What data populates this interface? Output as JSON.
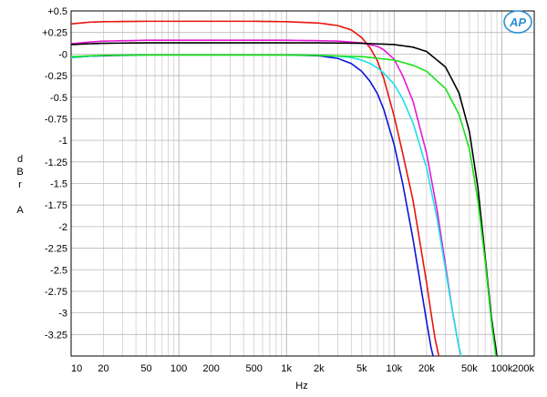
{
  "chart_data": {
    "type": "line",
    "title": "",
    "xlabel": "Hz",
    "ylabel_letters": [
      "d",
      "B",
      "r",
      "",
      "A"
    ],
    "x_scale": "log",
    "xlim": [
      10,
      200000
    ],
    "ylim": [
      -3.5,
      0.5
    ],
    "x_ticks": [
      {
        "value": 10,
        "label": "10"
      },
      {
        "value": 20,
        "label": "20"
      },
      {
        "value": 50,
        "label": "50"
      },
      {
        "value": 100,
        "label": "100"
      },
      {
        "value": 200,
        "label": "200"
      },
      {
        "value": 500,
        "label": "500"
      },
      {
        "value": 1000,
        "label": "1k"
      },
      {
        "value": 2000,
        "label": "2k"
      },
      {
        "value": 5000,
        "label": "5k"
      },
      {
        "value": 10000,
        "label": "10k"
      },
      {
        "value": 20000,
        "label": "20k"
      },
      {
        "value": 50000,
        "label": "50k"
      },
      {
        "value": 100000,
        "label": "100k"
      },
      {
        "value": 200000,
        "label": "200k"
      }
    ],
    "y_ticks": [
      {
        "value": 0.5,
        "label": "+0.5"
      },
      {
        "value": 0.25,
        "label": "+0.25"
      },
      {
        "value": 0,
        "label": "-0"
      },
      {
        "value": -0.25,
        "label": "-0.25"
      },
      {
        "value": -0.5,
        "label": "-0.5"
      },
      {
        "value": -0.75,
        "label": "-0.75"
      },
      {
        "value": -1,
        "label": "-1"
      },
      {
        "value": -1.25,
        "label": "-1.25"
      },
      {
        "value": -1.5,
        "label": "-1.5"
      },
      {
        "value": -1.75,
        "label": "-1.75"
      },
      {
        "value": -2,
        "label": "-2"
      },
      {
        "value": -2.25,
        "label": "-2.25"
      },
      {
        "value": -2.5,
        "label": "-2.5"
      },
      {
        "value": -2.75,
        "label": "-2.75"
      },
      {
        "value": -3,
        "label": "-3"
      },
      {
        "value": -3.25,
        "label": "-3.25"
      }
    ],
    "grid": true,
    "logo_text": "AP",
    "series": [
      {
        "color": "#e8140c",
        "x": [
          10,
          15,
          20,
          50,
          100,
          500,
          1000,
          2000,
          3000,
          4000,
          5000,
          6000,
          7000,
          8000,
          10000,
          12000,
          15000,
          18000,
          20000,
          22000,
          24000,
          26000
        ],
        "y": [
          0.35,
          0.37,
          0.375,
          0.38,
          0.38,
          0.38,
          0.375,
          0.36,
          0.33,
          0.28,
          0.19,
          0.07,
          -0.08,
          -0.28,
          -0.72,
          -1.15,
          -1.7,
          -2.3,
          -2.65,
          -3.0,
          -3.3,
          -3.5
        ]
      },
      {
        "color": "#0a14d8",
        "x": [
          10,
          15,
          20,
          50,
          100,
          500,
          1000,
          2000,
          3000,
          4000,
          5000,
          6000,
          7000,
          8000,
          10000,
          12000,
          15000,
          18000,
          20000,
          22000,
          23000
        ],
        "y": [
          -0.04,
          -0.025,
          -0.02,
          -0.01,
          -0.01,
          -0.01,
          -0.01,
          -0.02,
          -0.05,
          -0.11,
          -0.2,
          -0.32,
          -0.46,
          -0.64,
          -1.05,
          -1.5,
          -2.15,
          -2.75,
          -3.1,
          -3.4,
          -3.5
        ]
      },
      {
        "color": "#e817d8",
        "x": [
          10,
          15,
          20,
          50,
          100,
          500,
          1000,
          2000,
          3000,
          5000,
          7000,
          8000,
          10000,
          12000,
          15000,
          20000,
          25000,
          30000,
          35000,
          40000,
          42000
        ],
        "y": [
          0.12,
          0.14,
          0.15,
          0.16,
          0.16,
          0.16,
          0.16,
          0.155,
          0.15,
          0.13,
          0.09,
          0.05,
          -0.06,
          -0.25,
          -0.55,
          -1.15,
          -1.8,
          -2.45,
          -3.0,
          -3.4,
          -3.5
        ]
      },
      {
        "color": "#1ae0e8",
        "x": [
          10,
          15,
          20,
          50,
          100,
          500,
          1000,
          2000,
          3000,
          4000,
          5000,
          6000,
          7000,
          8000,
          10000,
          12000,
          15000,
          20000,
          25000,
          30000,
          35000,
          40000,
          42000
        ],
        "y": [
          -0.04,
          -0.025,
          -0.015,
          -0.01,
          -0.01,
          -0.01,
          -0.01,
          -0.015,
          -0.025,
          -0.04,
          -0.07,
          -0.11,
          -0.16,
          -0.22,
          -0.35,
          -0.52,
          -0.8,
          -1.32,
          -1.9,
          -2.5,
          -3.0,
          -3.4,
          -3.5
        ]
      },
      {
        "color": "#000000",
        "x": [
          10,
          15,
          20,
          50,
          100,
          500,
          1000,
          2000,
          5000,
          10000,
          15000,
          20000,
          30000,
          40000,
          50000,
          60000,
          70000,
          80000,
          90000
        ],
        "y": [
          0.11,
          0.12,
          0.125,
          0.13,
          0.13,
          0.13,
          0.13,
          0.13,
          0.125,
          0.11,
          0.08,
          0.03,
          -0.15,
          -0.45,
          -0.9,
          -1.55,
          -2.35,
          -3.05,
          -3.5
        ]
      },
      {
        "color": "#1ae01a",
        "x": [
          10,
          15,
          20,
          50,
          100,
          500,
          1000,
          2000,
          5000,
          10000,
          15000,
          20000,
          30000,
          40000,
          50000,
          60000,
          70000,
          80000,
          88000
        ],
        "y": [
          -0.03,
          -0.02,
          -0.015,
          -0.01,
          -0.01,
          -0.01,
          -0.01,
          -0.015,
          -0.03,
          -0.07,
          -0.13,
          -0.2,
          -0.4,
          -0.7,
          -1.1,
          -1.7,
          -2.4,
          -3.1,
          -3.5
        ]
      }
    ]
  }
}
